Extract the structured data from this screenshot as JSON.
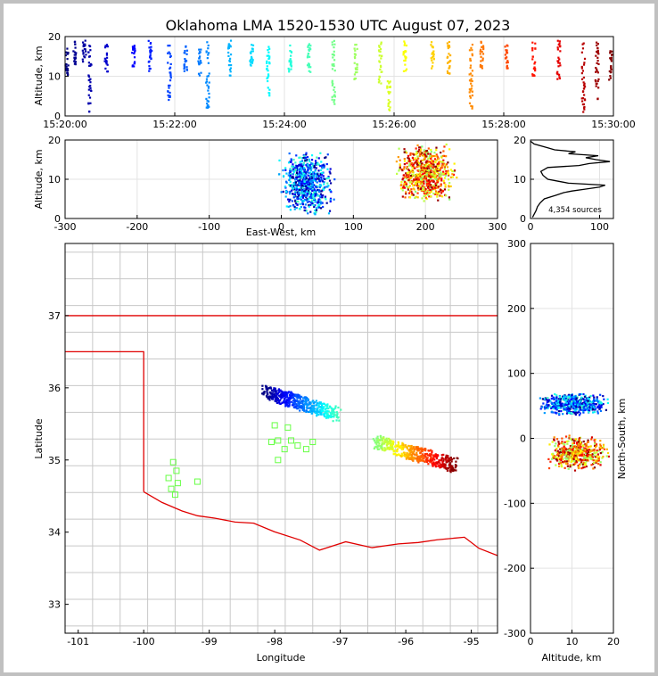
{
  "title": "Oklahoma LMA 1520-1530 UTC August 07, 2023",
  "chart_data": [
    {
      "type": "scatter",
      "panel": "time-height",
      "xlabel": "",
      "ylabel": "Altitude, km",
      "x_ticks": [
        "15:20:00",
        "15:22:00",
        "15:24:00",
        "15:26:00",
        "15:28:00",
        "15:30:00"
      ],
      "xlim_minutes": [
        0,
        10
      ],
      "ylim": [
        0,
        20
      ],
      "y_ticks": [
        "0",
        "10",
        "20"
      ],
      "colormap": "jet (time)",
      "bursts": [
        {
          "t": 0.03,
          "y0": 9,
          "y1": 17
        },
        {
          "t": 0.18,
          "y0": 13,
          "y1": 19
        },
        {
          "t": 0.35,
          "y0": 12,
          "y1": 19
        },
        {
          "t": 0.45,
          "y0": 1,
          "y1": 18
        },
        {
          "t": 0.75,
          "y0": 11,
          "y1": 18
        },
        {
          "t": 1.25,
          "y0": 12,
          "y1": 18
        },
        {
          "t": 1.55,
          "y0": 11,
          "y1": 19
        },
        {
          "t": 1.9,
          "y0": 4,
          "y1": 18
        },
        {
          "t": 2.2,
          "y0": 11,
          "y1": 18
        },
        {
          "t": 2.45,
          "y0": 10,
          "y1": 17
        },
        {
          "t": 2.6,
          "y0": 2,
          "y1": 19
        },
        {
          "t": 3.0,
          "y0": 10,
          "y1": 19
        },
        {
          "t": 3.4,
          "y0": 12,
          "y1": 18
        },
        {
          "t": 3.7,
          "y0": 5,
          "y1": 18
        },
        {
          "t": 4.1,
          "y0": 11,
          "y1": 18
        },
        {
          "t": 4.45,
          "y0": 11,
          "y1": 19
        },
        {
          "t": 4.9,
          "y0": 3,
          "y1": 20
        },
        {
          "t": 5.3,
          "y0": 9,
          "y1": 19
        },
        {
          "t": 5.75,
          "y0": 8,
          "y1": 19
        },
        {
          "t": 5.9,
          "y0": 1,
          "y1": 9
        },
        {
          "t": 6.2,
          "y0": 11,
          "y1": 19
        },
        {
          "t": 6.7,
          "y0": 12,
          "y1": 19
        },
        {
          "t": 7.0,
          "y0": 10,
          "y1": 19
        },
        {
          "t": 7.4,
          "y0": 1,
          "y1": 19
        },
        {
          "t": 7.6,
          "y0": 12,
          "y1": 19
        },
        {
          "t": 8.05,
          "y0": 12,
          "y1": 18
        },
        {
          "t": 8.55,
          "y0": 10,
          "y1": 19
        },
        {
          "t": 9.0,
          "y0": 9,
          "y1": 19
        },
        {
          "t": 9.45,
          "y0": 1,
          "y1": 19
        },
        {
          "t": 9.7,
          "y0": 4,
          "y1": 20
        },
        {
          "t": 9.95,
          "y0": 9,
          "y1": 17
        }
      ]
    },
    {
      "type": "scatter",
      "panel": "east-west vs altitude",
      "xlabel": "East-West, km",
      "ylabel": "Altitude, km",
      "xlim": [
        -300,
        300
      ],
      "ylim": [
        0,
        20
      ],
      "x_ticks": [
        "-300",
        "-200",
        "-100",
        "0",
        "100",
        "200",
        "300"
      ],
      "y_ticks": [
        "0",
        "10",
        "20"
      ],
      "clusters": [
        {
          "x": [
            -10,
            80
          ],
          "y": [
            0,
            18
          ],
          "color_order": [
            0.0,
            0.45
          ]
        },
        {
          "x": [
            150,
            250
          ],
          "y": [
            3,
            20
          ],
          "color_order": [
            0.5,
            1.0
          ]
        }
      ]
    },
    {
      "type": "line",
      "panel": "altitude histogram",
      "xlim": [
        0,
        120
      ],
      "ylim": [
        0,
        20
      ],
      "x_ticks": [
        "0",
        "100"
      ],
      "y_ticks": [
        "0",
        "10",
        "20"
      ],
      "annotation": "4,354 sources",
      "profile": [
        {
          "alt": 0.3,
          "count": 3
        },
        {
          "alt": 1,
          "count": 5
        },
        {
          "alt": 2,
          "count": 8
        },
        {
          "alt": 3,
          "count": 10
        },
        {
          "alt": 4,
          "count": 14
        },
        {
          "alt": 5,
          "count": 20
        },
        {
          "alt": 6,
          "count": 38
        },
        {
          "alt": 6.6,
          "count": 48
        },
        {
          "alt": 7,
          "count": 60
        },
        {
          "alt": 7.5,
          "count": 80
        },
        {
          "alt": 8,
          "count": 100
        },
        {
          "alt": 8.5,
          "count": 108
        },
        {
          "alt": 9,
          "count": 55
        },
        {
          "alt": 9.5,
          "count": 40
        },
        {
          "alt": 10,
          "count": 25
        },
        {
          "alt": 11,
          "count": 18
        },
        {
          "alt": 12,
          "count": 15
        },
        {
          "alt": 13,
          "count": 25
        },
        {
          "alt": 13.5,
          "count": 70
        },
        {
          "alt": 14,
          "count": 85
        },
        {
          "alt": 14.5,
          "count": 115
        },
        {
          "alt": 15,
          "count": 95
        },
        {
          "alt": 15.5,
          "count": 80
        },
        {
          "alt": 16,
          "count": 98
        },
        {
          "alt": 16.5,
          "count": 55
        },
        {
          "alt": 17,
          "count": 65
        },
        {
          "alt": 17.5,
          "count": 35
        },
        {
          "alt": 18,
          "count": 25
        },
        {
          "alt": 19,
          "count": 5
        },
        {
          "alt": 19.7,
          "count": 0
        }
      ]
    },
    {
      "type": "scatter",
      "panel": "plan view map",
      "xlabel": "Longitude",
      "ylabel": "Latitude",
      "xlim": [
        -101.2,
        -94.6
      ],
      "ylim": [
        32.6,
        38.0
      ],
      "x_ticks": [
        "-101",
        "-100",
        "-99",
        "-98",
        "-97",
        "-96",
        "-95"
      ],
      "y_ticks": [
        "33",
        "34",
        "35",
        "36",
        "37"
      ],
      "clusters": [
        {
          "lon": [
            -98.15,
            -97.05
          ],
          "lat": [
            35.55,
            35.95
          ],
          "color_order": [
            0.0,
            0.45
          ]
        },
        {
          "lon": [
            -96.45,
            -95.25
          ],
          "lat": [
            34.85,
            35.25
          ],
          "color_order": [
            0.5,
            1.0
          ]
        }
      ],
      "stations": [
        [
          -99.55,
          34.97
        ],
        [
          -99.5,
          34.85
        ],
        [
          -99.62,
          34.75
        ],
        [
          -99.48,
          34.68
        ],
        [
          -99.58,
          34.6
        ],
        [
          -99.52,
          34.52
        ],
        [
          -99.18,
          34.7
        ],
        [
          -98.05,
          35.25
        ],
        [
          -97.95,
          35.27
        ],
        [
          -97.85,
          35.15
        ],
        [
          -97.75,
          35.27
        ],
        [
          -97.65,
          35.2
        ],
        [
          -97.52,
          35.15
        ],
        [
          -97.42,
          35.25
        ],
        [
          -97.95,
          35.0
        ],
        [
          -97.8,
          35.45
        ],
        [
          -98.0,
          35.48
        ]
      ]
    },
    {
      "type": "scatter",
      "panel": "altitude vs north-south",
      "xlabel": "Altitude, km",
      "ylabel": "North-South, km",
      "xlim": [
        0,
        20
      ],
      "ylim": [
        -300,
        300
      ],
      "x_ticks": [
        "0",
        "10",
        "20"
      ],
      "y_ticks": [
        "-300",
        "-200",
        "-100",
        "0",
        "100",
        "200",
        "300"
      ],
      "clusters": [
        {
          "alt": [
            1,
            20
          ],
          "ns": [
            35,
            70
          ],
          "color_order": [
            0.0,
            0.45
          ]
        },
        {
          "alt": [
            3,
            20
          ],
          "ns": [
            -50,
            5
          ],
          "color_order": [
            0.5,
            1.0
          ]
        }
      ]
    }
  ],
  "colors": {
    "border": "#e00000",
    "county": "#c8c8c8",
    "station": "#66ff44",
    "grid": "#e3e3e3"
  }
}
